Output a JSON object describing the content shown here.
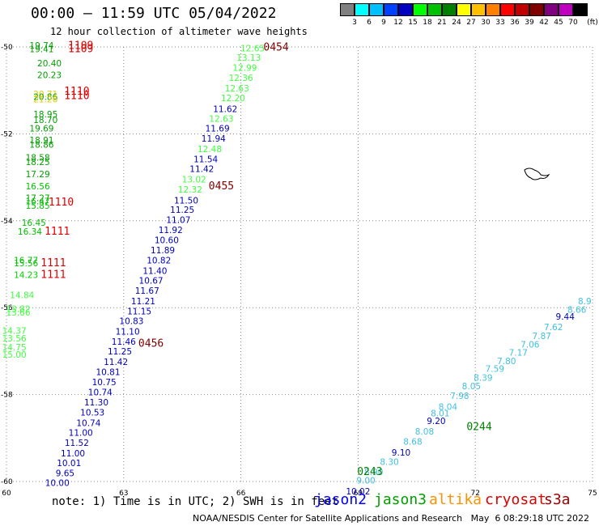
{
  "header": {
    "title": "00:00 – 11:59 UTC 05/04/2022",
    "subtitle": "12 hour collection of altimeter wave heights"
  },
  "legend": {
    "unit": "(ft)",
    "items": [
      {
        "label": "",
        "color": "#808080"
      },
      {
        "label": "3",
        "color": "#00ffff"
      },
      {
        "label": "6",
        "color": "#00bfff"
      },
      {
        "label": "9",
        "color": "#0040ff"
      },
      {
        "label": "12",
        "color": "#0000c0"
      },
      {
        "label": "15",
        "color": "#00ff00"
      },
      {
        "label": "18",
        "color": "#00c000"
      },
      {
        "label": "21",
        "color": "#008000"
      },
      {
        "label": "24",
        "color": "#ffff00"
      },
      {
        "label": "27",
        "color": "#ffc000"
      },
      {
        "label": "30",
        "color": "#ff8000"
      },
      {
        "label": "33",
        "color": "#ff0000"
      },
      {
        "label": "36",
        "color": "#c00000"
      },
      {
        "label": "39",
        "color": "#800000"
      },
      {
        "label": "42",
        "color": "#800080"
      },
      {
        "label": "45",
        "color": "#c000c0"
      },
      {
        "label": "70",
        "color": "#000000"
      }
    ]
  },
  "chart_data": {
    "type": "scatter",
    "xlim": [
      60,
      75
    ],
    "ylim": [
      -60,
      -50
    ],
    "x_ticks": [
      60,
      63,
      66,
      69,
      72,
      75
    ],
    "y_ticks": [
      -50,
      -52,
      -54,
      -56,
      -58,
      -60
    ],
    "grid": true,
    "points": [
      {
        "x": 60.9,
        "y": -50.04,
        "label": "19.74",
        "color": "#00a000"
      },
      {
        "x": 60.9,
        "y": -50.12,
        "label": "19.41",
        "color": "#00a000"
      },
      {
        "x": 61.1,
        "y": -50.45,
        "label": "20.40",
        "color": "#00a000"
      },
      {
        "x": 61.1,
        "y": -50.72,
        "label": "20.23",
        "color": "#00a000"
      },
      {
        "x": 61.0,
        "y": -51.15,
        "label": "20.71",
        "color": "#e0d000"
      },
      {
        "x": 61.0,
        "y": -51.22,
        "label": "20.86",
        "color": "#00a000"
      },
      {
        "x": 61.0,
        "y": -51.28,
        "label": "21.26",
        "color": "#e0d000"
      },
      {
        "x": 61.0,
        "y": -51.62,
        "label": "18.95",
        "color": "#00a000"
      },
      {
        "x": 61.0,
        "y": -51.75,
        "label": "18.70",
        "color": "#00a000"
      },
      {
        "x": 60.9,
        "y": -51.95,
        "label": "19.69",
        "color": "#00a000"
      },
      {
        "x": 60.9,
        "y": -52.22,
        "label": "18.91",
        "color": "#00a000"
      },
      {
        "x": 60.9,
        "y": -52.32,
        "label": "18.86",
        "color": "#00a000"
      },
      {
        "x": 60.8,
        "y": -52.62,
        "label": "18.58",
        "color": "#00a000"
      },
      {
        "x": 60.8,
        "y": -52.72,
        "label": "18.25",
        "color": "#00a000"
      },
      {
        "x": 60.8,
        "y": -53.0,
        "label": "17.29",
        "color": "#00a000"
      },
      {
        "x": 60.8,
        "y": -53.28,
        "label": "16.56",
        "color": "#00c000"
      },
      {
        "x": 60.8,
        "y": -53.55,
        "label": "17.27",
        "color": "#00a000"
      },
      {
        "x": 60.8,
        "y": -53.62,
        "label": "16.47",
        "color": "#00c000"
      },
      {
        "x": 60.8,
        "y": -53.72,
        "label": "15.85",
        "color": "#00c000"
      },
      {
        "x": 60.7,
        "y": -54.12,
        "label": "16.45",
        "color": "#00c000"
      },
      {
        "x": 60.6,
        "y": -54.32,
        "label": "16.34",
        "color": "#00c000"
      },
      {
        "x": 60.5,
        "y": -54.98,
        "label": "16.77",
        "color": "#00c000"
      },
      {
        "x": 60.5,
        "y": -55.05,
        "label": "15.56",
        "color": "#00c000"
      },
      {
        "x": 60.5,
        "y": -55.32,
        "label": "14.23",
        "color": "#00d000"
      },
      {
        "x": 60.4,
        "y": -55.78,
        "label": "14.84",
        "color": "#40ff40"
      },
      {
        "x": 60.3,
        "y": -56.1,
        "label": "13.82",
        "color": "#40ff40"
      },
      {
        "x": 60.3,
        "y": -56.18,
        "label": "13.66",
        "color": "#40ff40"
      },
      {
        "x": 60.2,
        "y": -56.6,
        "label": "14.37",
        "color": "#40ff40"
      },
      {
        "x": 60.2,
        "y": -56.78,
        "label": "13.56",
        "color": "#40ff40"
      },
      {
        "x": 60.2,
        "y": -56.98,
        "label": "14.75",
        "color": "#40ff40"
      },
      {
        "x": 60.2,
        "y": -57.15,
        "label": "15.00",
        "color": "#40ff40"
      },
      {
        "x": 66.3,
        "y": -50.1,
        "label": "12.65",
        "color": "#40ff40"
      },
      {
        "x": 66.2,
        "y": -50.32,
        "label": "13.13",
        "color": "#40ff40"
      },
      {
        "x": 66.1,
        "y": -50.55,
        "label": "12.99",
        "color": "#40ff40"
      },
      {
        "x": 66.0,
        "y": -50.78,
        "label": "12.36",
        "color": "#40ff40"
      },
      {
        "x": 65.9,
        "y": -51.02,
        "label": "12.63",
        "color": "#40ff40"
      },
      {
        "x": 65.8,
        "y": -51.25,
        "label": "12.20",
        "color": "#40ff40"
      },
      {
        "x": 65.6,
        "y": -51.5,
        "label": "11.62",
        "color": "#0000c0"
      },
      {
        "x": 65.5,
        "y": -51.72,
        "label": "12.63",
        "color": "#40ff40"
      },
      {
        "x": 65.4,
        "y": -51.95,
        "label": "11.69",
        "color": "#0000c0"
      },
      {
        "x": 65.3,
        "y": -52.18,
        "label": "11.94",
        "color": "#0000c0"
      },
      {
        "x": 65.2,
        "y": -52.42,
        "label": "12.48",
        "color": "#40ff40"
      },
      {
        "x": 65.1,
        "y": -52.65,
        "label": "11.54",
        "color": "#0000c0"
      },
      {
        "x": 65.0,
        "y": -52.88,
        "label": "11.42",
        "color": "#0000c0"
      },
      {
        "x": 64.8,
        "y": -53.12,
        "label": "13.02",
        "color": "#40ff40"
      },
      {
        "x": 64.7,
        "y": -53.35,
        "label": "12.32",
        "color": "#40ff40"
      },
      {
        "x": 64.6,
        "y": -53.6,
        "label": "11.50",
        "color": "#0000c0"
      },
      {
        "x": 64.5,
        "y": -53.82,
        "label": "11.25",
        "color": "#0000c0"
      },
      {
        "x": 64.4,
        "y": -54.05,
        "label": "11.07",
        "color": "#0000c0"
      },
      {
        "x": 64.2,
        "y": -54.28,
        "label": "11.92",
        "color": "#0000c0"
      },
      {
        "x": 64.1,
        "y": -54.52,
        "label": "10.60",
        "color": "#0000c0"
      },
      {
        "x": 64.0,
        "y": -54.75,
        "label": "11.89",
        "color": "#0000c0"
      },
      {
        "x": 63.9,
        "y": -54.98,
        "label": "10.82",
        "color": "#0000c0"
      },
      {
        "x": 63.8,
        "y": -55.22,
        "label": "11.40",
        "color": "#0000c0"
      },
      {
        "x": 63.7,
        "y": -55.45,
        "label": "10.67",
        "color": "#0000c0"
      },
      {
        "x": 63.6,
        "y": -55.68,
        "label": "11.67",
        "color": "#0000c0"
      },
      {
        "x": 63.5,
        "y": -55.92,
        "label": "11.21",
        "color": "#0000c0"
      },
      {
        "x": 63.4,
        "y": -56.15,
        "label": "11.15",
        "color": "#0000c0"
      },
      {
        "x": 63.2,
        "y": -56.38,
        "label": "10.83",
        "color": "#0000c0"
      },
      {
        "x": 63.1,
        "y": -56.62,
        "label": "11.10",
        "color": "#0000c0"
      },
      {
        "x": 63.0,
        "y": -56.85,
        "label": "11.46",
        "color": "#0000c0"
      },
      {
        "x": 62.9,
        "y": -57.08,
        "label": "11.25",
        "color": "#0000c0"
      },
      {
        "x": 62.8,
        "y": -57.32,
        "label": "11.42",
        "color": "#0000c0"
      },
      {
        "x": 62.6,
        "y": -57.55,
        "label": "10.81",
        "color": "#0000c0"
      },
      {
        "x": 62.5,
        "y": -57.78,
        "label": "10.75",
        "color": "#0000c0"
      },
      {
        "x": 62.4,
        "y": -58.02,
        "label": "10.74",
        "color": "#0000c0"
      },
      {
        "x": 62.3,
        "y": -58.25,
        "label": "11.30",
        "color": "#0000c0"
      },
      {
        "x": 62.2,
        "y": -58.48,
        "label": "10.53",
        "color": "#0000c0"
      },
      {
        "x": 62.1,
        "y": -58.72,
        "label": "10.74",
        "color": "#0000c0"
      },
      {
        "x": 61.9,
        "y": -58.95,
        "label": "11.00",
        "color": "#0000c0"
      },
      {
        "x": 61.8,
        "y": -59.18,
        "label": "11.52",
        "color": "#0000c0"
      },
      {
        "x": 61.7,
        "y": -59.42,
        "label": "11.00",
        "color": "#0000c0"
      },
      {
        "x": 61.6,
        "y": -59.65,
        "label": "10.01",
        "color": "#0000c0"
      },
      {
        "x": 61.5,
        "y": -59.88,
        "label": "9.65",
        "color": "#0000c0"
      },
      {
        "x": 61.3,
        "y": -60.1,
        "label": "10.00",
        "color": "#0000c0"
      },
      {
        "x": 69.0,
        "y": -60.3,
        "label": "10.02",
        "color": "#0000c0"
      },
      {
        "x": 69.2,
        "y": -60.05,
        "label": "9.00",
        "color": "#40c0e0"
      },
      {
        "x": 69.4,
        "y": -59.85,
        "label": "8.90",
        "color": "#40c0e0"
      },
      {
        "x": 69.8,
        "y": -59.62,
        "label": "8.30",
        "color": "#40c0e0"
      },
      {
        "x": 70.1,
        "y": -59.4,
        "label": "9.10",
        "color": "#0000c0"
      },
      {
        "x": 70.4,
        "y": -59.15,
        "label": "8.68",
        "color": "#40c0e0"
      },
      {
        "x": 70.7,
        "y": -58.92,
        "label": "8.08",
        "color": "#40c0e0"
      },
      {
        "x": 71.0,
        "y": -58.68,
        "label": "9.20",
        "color": "#0000c0"
      },
      {
        "x": 71.1,
        "y": -58.5,
        "label": "8.01",
        "color": "#40c0e0"
      },
      {
        "x": 71.3,
        "y": -58.35,
        "label": "8.04",
        "color": "#40c0e0"
      },
      {
        "x": 71.6,
        "y": -58.1,
        "label": "7.98",
        "color": "#40c0e0"
      },
      {
        "x": 71.9,
        "y": -57.88,
        "label": "8.05",
        "color": "#40c0e0"
      },
      {
        "x": 72.2,
        "y": -57.68,
        "label": "8.39",
        "color": "#40c0e0"
      },
      {
        "x": 72.5,
        "y": -57.48,
        "label": "7.59",
        "color": "#40c0e0"
      },
      {
        "x": 72.8,
        "y": -57.3,
        "label": "7.80",
        "color": "#40c0e0"
      },
      {
        "x": 73.1,
        "y": -57.1,
        "label": "7.17",
        "color": "#40c0e0"
      },
      {
        "x": 73.4,
        "y": -56.92,
        "label": "7.06",
        "color": "#40c0e0"
      },
      {
        "x": 73.7,
        "y": -56.72,
        "label": "7.87",
        "color": "#40c0e0"
      },
      {
        "x": 74.0,
        "y": -56.52,
        "label": "7.62",
        "color": "#40c0e0"
      },
      {
        "x": 74.3,
        "y": -56.28,
        "label": "9.44",
        "color": "#0000c0"
      },
      {
        "x": 74.6,
        "y": -56.12,
        "label": "8.66",
        "color": "#40c0e0"
      },
      {
        "x": 74.8,
        "y": -55.92,
        "label": "8.9",
        "color": "#40c0e0"
      }
    ],
    "time_labels": [
      {
        "x": 61.9,
        "y": -50.05,
        "label": "1109",
        "color": "#e00000"
      },
      {
        "x": 61.9,
        "y": -50.12,
        "label": "1109",
        "color": "#e00000"
      },
      {
        "x": 61.8,
        "y": -51.1,
        "label": "1110",
        "color": "#e00000"
      },
      {
        "x": 61.8,
        "y": -51.2,
        "label": "1110",
        "color": "#e00000"
      },
      {
        "x": 61.4,
        "y": -53.65,
        "label": "1110",
        "color": "#e00000"
      },
      {
        "x": 61.3,
        "y": -54.32,
        "label": "1111",
        "color": "#e00000"
      },
      {
        "x": 61.2,
        "y": -55.05,
        "label": "1111",
        "color": "#e00000"
      },
      {
        "x": 61.2,
        "y": -55.32,
        "label": "1111",
        "color": "#e00000"
      },
      {
        "x": 66.9,
        "y": -50.08,
        "label": "0454",
        "color": "#800000"
      },
      {
        "x": 65.5,
        "y": -53.28,
        "label": "0455",
        "color": "#800000"
      },
      {
        "x": 63.7,
        "y": -56.9,
        "label": "0456",
        "color": "#800000"
      },
      {
        "x": 72.1,
        "y": -58.82,
        "label": "0244",
        "color": "#008000"
      },
      {
        "x": 69.3,
        "y": -59.85,
        "label": "0243",
        "color": "#008000"
      }
    ]
  },
  "footer": {
    "note": "note: 1) Time is in UTC; 2) SWH is in feet",
    "satellites": [
      {
        "label": "jason2",
        "color": "#0000ff"
      },
      {
        "label": "jason3",
        "color": "#00a000"
      },
      {
        "label": "altika",
        "color": "#ff9000"
      },
      {
        "label": "cryosat",
        "color": "#e00000"
      },
      {
        "label": "s3a",
        "color": "#a00000"
      }
    ],
    "credit": "NOAA/NESDIS Center for Satellite Applications and Research   May  6 08:29:18 UTC 2022"
  }
}
